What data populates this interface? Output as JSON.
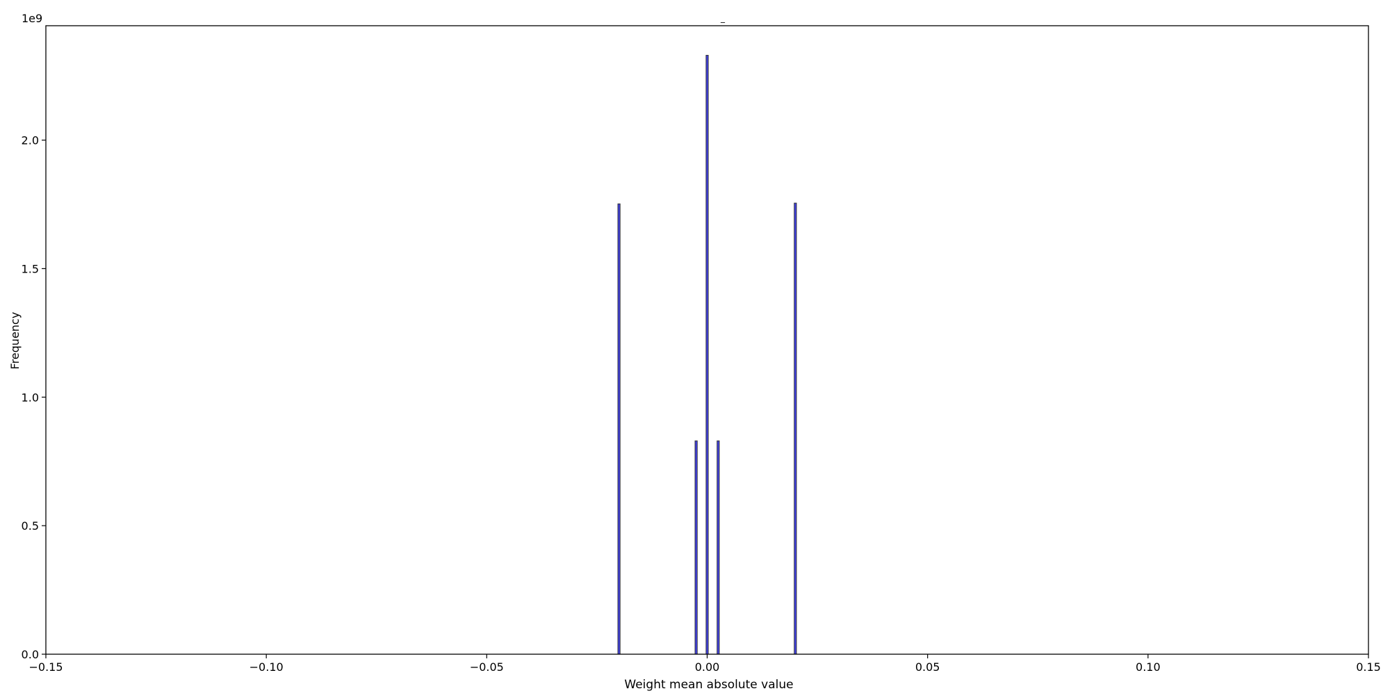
{
  "chart_data": {
    "type": "bar",
    "title": "_",
    "xlabel": "Weight mean absolute value",
    "ylabel": "Frequency",
    "y_offset_label": "1e9",
    "xlim": [
      -0.15,
      0.15
    ],
    "ylim": [
      0,
      2445000000.0
    ],
    "xticks": [
      -0.15,
      -0.1,
      -0.05,
      0.0,
      0.05,
      0.1,
      0.15
    ],
    "xtick_labels": [
      "−0.15",
      "−0.10",
      "−0.05",
      "0.00",
      "0.05",
      "0.10",
      "0.15"
    ],
    "yticks": [
      0,
      500000000.0,
      1000000000.0,
      1500000000.0,
      2000000000.0
    ],
    "ytick_labels": [
      "0.0",
      "0.5",
      "1.0",
      "1.5",
      "2.0"
    ],
    "bin_width": 0.0005,
    "bars": [
      {
        "x": -0.02,
        "value": 1752000000.0
      },
      {
        "x": -0.0025,
        "value": 830000000.0
      },
      {
        "x": 0.0,
        "value": 2330000000.0
      },
      {
        "x": 0.0025,
        "value": 830000000.0
      },
      {
        "x": 0.02,
        "value": 1755000000.0
      }
    ],
    "bar_color": "#4040e8",
    "edge_color": "#333333",
    "grid": false
  }
}
